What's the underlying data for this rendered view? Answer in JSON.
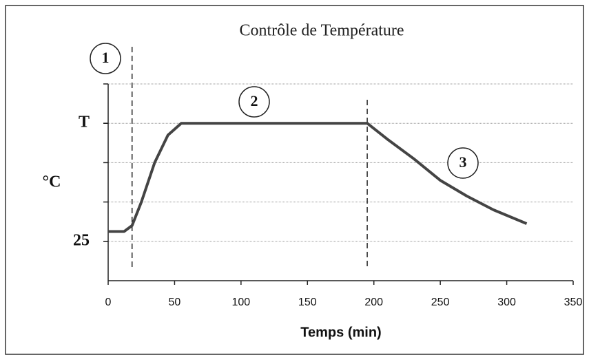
{
  "chart_data": {
    "type": "line",
    "title": "Contrôle de Température",
    "xlabel": "Temps (min)",
    "ylabel": "°C",
    "xlim": [
      0,
      350
    ],
    "xticks": [
      0,
      50,
      100,
      150,
      200,
      250,
      300,
      350
    ],
    "ylim": [
      24,
      29
    ],
    "yticks": [
      25,
      {
        "value": 28,
        "label": "T"
      }
    ],
    "ygrid": [
      25,
      26,
      27,
      28,
      29
    ],
    "grid": true,
    "vlines": [
      18,
      195
    ],
    "annotations": [
      "1",
      "2",
      "3"
    ],
    "series": [
      {
        "color": "#444444",
        "x": [
          0,
          12,
          18,
          25,
          35,
          45,
          55,
          60,
          195,
          210,
          230,
          250,
          270,
          290,
          315
        ],
        "values": [
          25.25,
          25.25,
          25.4,
          26,
          27,
          27.7,
          28,
          28,
          28,
          27.6,
          27.1,
          26.55,
          26.15,
          25.8,
          25.45
        ]
      }
    ]
  }
}
